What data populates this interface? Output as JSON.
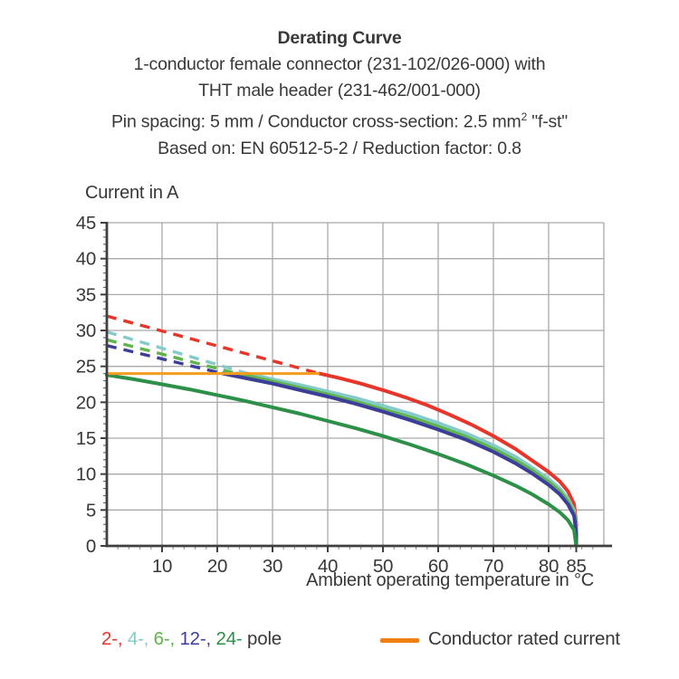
{
  "title": {
    "heading": "Derating Curve",
    "line2": "1-conductor female connector (231-102/026-000) with",
    "line3": "THT male header (231-462/001-000)",
    "line4_pre": "Pin spacing: 5 mm / Conductor cross-section: 2.5 mm",
    "line4_sup": "2",
    "line4_post": " \"f-st\"",
    "line5": "Based on: EN 60512-5-2 / Reduction factor: 0.8"
  },
  "axes": {
    "y_title": "Current in A",
    "x_title": "Ambient operating temperature in °C"
  },
  "legend": {
    "pole_items": [
      {
        "label": "2-",
        "color": "#e8352a"
      },
      {
        "label": "4-",
        "color": "#85cbc9"
      },
      {
        "label": "6-",
        "color": "#5db54b"
      },
      {
        "label": "12-",
        "color": "#3d3e99"
      },
      {
        "label": "24-",
        "color": "#2d9048"
      }
    ],
    "separator": ", ",
    "suffix": " pole",
    "rated_label": "Conductor rated current",
    "rated_swatch_color": "#ef8013"
  },
  "chart_data": {
    "type": "line",
    "title": "Derating Curve",
    "xlabel": "Ambient operating temperature in °C",
    "ylabel": "Current in A",
    "xlim": [
      0,
      91
    ],
    "ylim": [
      0,
      45
    ],
    "grid": true,
    "x_major_ticks": [
      10,
      20,
      30,
      40,
      50,
      60,
      70,
      80,
      85
    ],
    "y_major_ticks": [
      0,
      5,
      10,
      15,
      20,
      25,
      30,
      35,
      40,
      45
    ],
    "x_gridlines": [
      10,
      20,
      30,
      40,
      50,
      60,
      70,
      80,
      90
    ],
    "y_gridlines": [
      5,
      10,
      15,
      20,
      25,
      30,
      35,
      40,
      45
    ],
    "x_minor_step": 2,
    "y_minor_step": 1,
    "gridline_color": "#a9a9a9",
    "axis_color": "#3f3f3f",
    "tick_label_color": "#383838",
    "rated_current": {
      "label": "Conductor rated current",
      "value": 24,
      "x_range": [
        0,
        38.5
      ],
      "color": "#f59b1e"
    },
    "series": [
      {
        "name": "2-pole",
        "color": "#e8352a",
        "dashed": [
          [
            0,
            32
          ],
          [
            38.5,
            24
          ]
        ],
        "solid": [
          [
            38.5,
            24
          ],
          [
            42,
            23.4
          ],
          [
            46,
            22.6
          ],
          [
            50,
            21.7
          ],
          [
            54,
            20.7
          ],
          [
            58,
            19.6
          ],
          [
            62,
            18.3
          ],
          [
            66,
            16.9
          ],
          [
            70,
            15.3
          ],
          [
            74,
            13.5
          ],
          [
            77,
            11.9
          ],
          [
            80,
            10.3
          ],
          [
            82,
            9.0
          ],
          [
            83.5,
            7.6
          ],
          [
            84.6,
            5.8
          ],
          [
            85,
            3.0
          ],
          [
            85,
            0
          ]
        ]
      },
      {
        "name": "4-pole",
        "color": "#85cbc9",
        "dashed": [
          [
            0,
            29.8
          ],
          [
            25.5,
            24
          ]
        ],
        "solid": [
          [
            25.5,
            24
          ],
          [
            30,
            23.2
          ],
          [
            35,
            22.4
          ],
          [
            40,
            21.5
          ],
          [
            45,
            20.6
          ],
          [
            50,
            19.5
          ],
          [
            55,
            18.4
          ],
          [
            60,
            17.1
          ],
          [
            65,
            15.7
          ],
          [
            70,
            14.0
          ],
          [
            74,
            12.4
          ],
          [
            77,
            10.9
          ],
          [
            80,
            9.3
          ],
          [
            82,
            8.0
          ],
          [
            83.5,
            6.6
          ],
          [
            84.6,
            4.9
          ],
          [
            85,
            2.4
          ],
          [
            85,
            0
          ]
        ]
      },
      {
        "name": "6-pole",
        "color": "#5db54b",
        "dashed": [
          [
            0,
            28.7
          ],
          [
            23.5,
            24
          ]
        ],
        "solid": [
          [
            23.5,
            24
          ],
          [
            30,
            22.9
          ],
          [
            35,
            22.0
          ],
          [
            40,
            21.1
          ],
          [
            45,
            20.1
          ],
          [
            50,
            19.0
          ],
          [
            55,
            17.9
          ],
          [
            60,
            16.6
          ],
          [
            65,
            15.2
          ],
          [
            70,
            13.5
          ],
          [
            74,
            11.9
          ],
          [
            77,
            10.5
          ],
          [
            80,
            8.9
          ],
          [
            82,
            7.6
          ],
          [
            83.5,
            6.2
          ],
          [
            84.6,
            4.5
          ],
          [
            85,
            2.1
          ],
          [
            85,
            0
          ]
        ]
      },
      {
        "name": "12-pole",
        "color": "#3d3e99",
        "dashed": [
          [
            0,
            27.9
          ],
          [
            21,
            24
          ]
        ],
        "solid": [
          [
            21,
            24
          ],
          [
            30,
            22.6
          ],
          [
            35,
            21.7
          ],
          [
            40,
            20.8
          ],
          [
            45,
            19.8
          ],
          [
            50,
            18.7
          ],
          [
            55,
            17.5
          ],
          [
            60,
            16.2
          ],
          [
            65,
            14.8
          ],
          [
            70,
            13.1
          ],
          [
            74,
            11.5
          ],
          [
            77,
            10.1
          ],
          [
            80,
            8.5
          ],
          [
            82,
            7.2
          ],
          [
            83.5,
            5.8
          ],
          [
            84.6,
            4.2
          ],
          [
            85,
            1.8
          ],
          [
            85,
            0
          ]
        ]
      },
      {
        "name": "24-pole",
        "color": "#2d9048",
        "solid": [
          [
            0,
            23.8
          ],
          [
            5,
            23.2
          ],
          [
            10,
            22.5
          ],
          [
            15,
            21.8
          ],
          [
            20,
            21.0
          ],
          [
            25,
            20.2
          ],
          [
            30,
            19.3
          ],
          [
            35,
            18.4
          ],
          [
            40,
            17.4
          ],
          [
            45,
            16.4
          ],
          [
            50,
            15.3
          ],
          [
            55,
            14.1
          ],
          [
            60,
            12.8
          ],
          [
            65,
            11.4
          ],
          [
            70,
            9.8
          ],
          [
            74,
            8.4
          ],
          [
            77,
            7.2
          ],
          [
            80,
            5.8
          ],
          [
            82,
            4.7
          ],
          [
            83.5,
            3.6
          ],
          [
            84.6,
            2.2
          ],
          [
            85,
            0
          ]
        ]
      }
    ]
  }
}
